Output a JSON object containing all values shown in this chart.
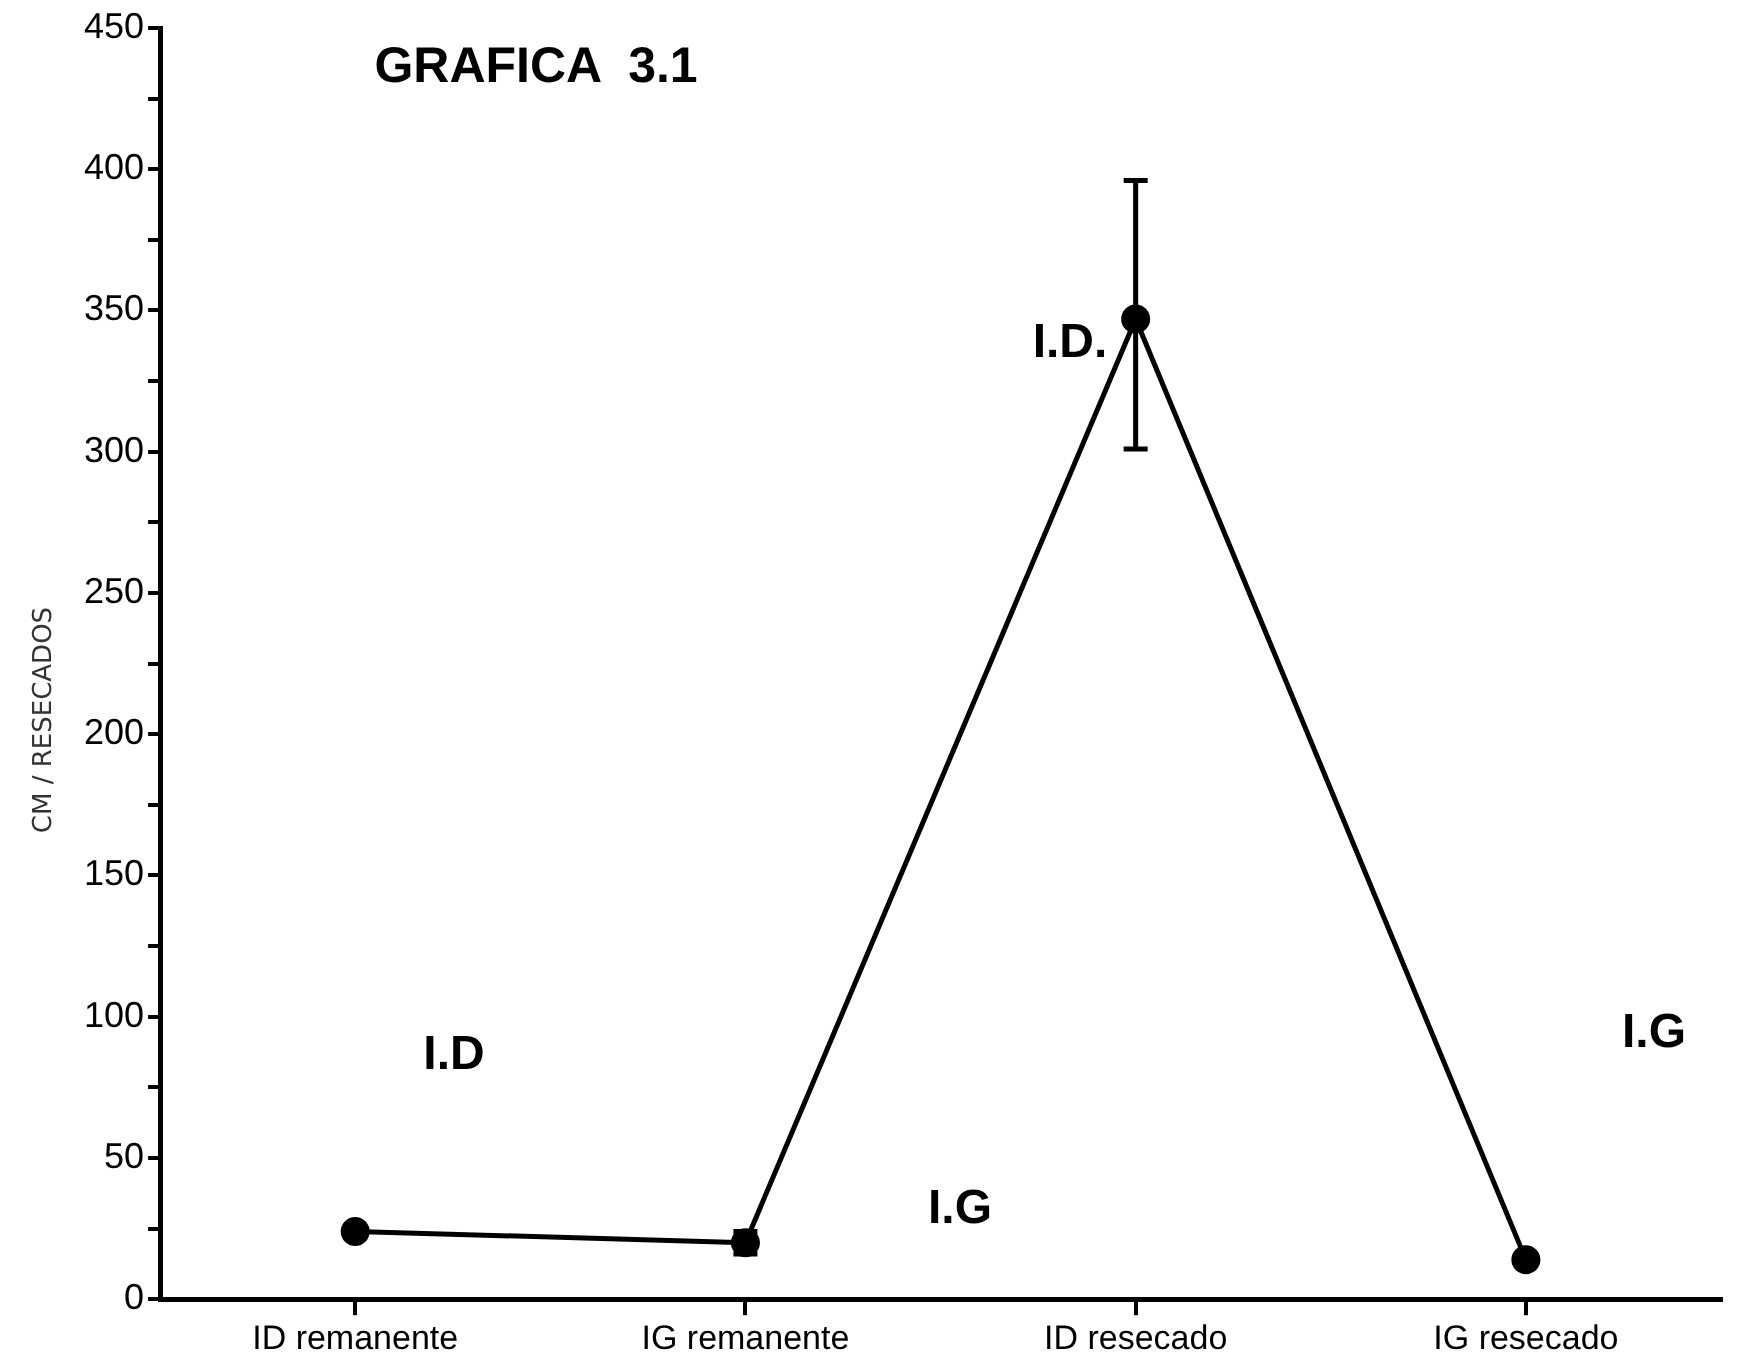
{
  "chart_data": {
    "type": "line",
    "title": "GRAFICA  3.1",
    "ylabel": "CM / RESECADOS",
    "categories": [
      "ID remanente",
      "IG remanente",
      "ID resecado",
      "IG resecado"
    ],
    "series": [
      {
        "color": "#000000",
        "values": [
          24,
          20,
          347,
          14
        ],
        "errors": [
          null,
          4,
          [
            301,
            396
          ],
          null
        ]
      }
    ],
    "ylim": [
      0,
      450
    ],
    "yticks": [
      0,
      {
        "value": 25,
        "label": null
      },
      50,
      {
        "value": 75,
        "label": null
      },
      100,
      {
        "value": 125,
        "label": null
      },
      150,
      {
        "value": 175,
        "label": null
      },
      200,
      {
        "value": 225,
        "label": null
      },
      250,
      {
        "value": 275,
        "label": null
      },
      300,
      {
        "value": 325,
        "label": null
      },
      350,
      {
        "value": 375,
        "label": null
      },
      400,
      {
        "value": 425,
        "label": null
      },
      450
    ],
    "annotations": [
      "I.D",
      "I.G",
      "I.D.",
      "I.G"
    ],
    "grid": false,
    "legend": false,
    "marker": "circle",
    "line_style": "solid"
  }
}
